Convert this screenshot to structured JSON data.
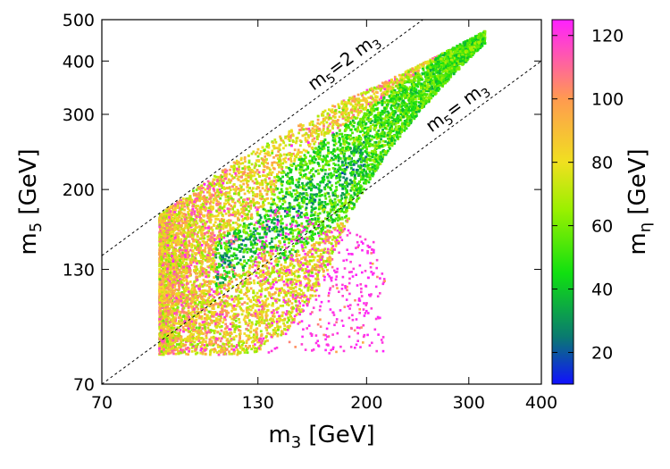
{
  "chart_data": {
    "type": "scatter",
    "xlabel": {
      "main": "m",
      "sub": "3",
      "unit": " [GeV]"
    },
    "ylabel": {
      "main": "m",
      "sub": "5",
      "unit": " [GeV]"
    },
    "colorbar_label": {
      "main": "m",
      "sub": "η",
      "unit": " [GeV]"
    },
    "x_scale": "log",
    "y_scale": "log",
    "xlim": [
      70,
      400
    ],
    "ylim": [
      70,
      500
    ],
    "x_ticks": [
      70,
      130,
      200,
      300,
      400
    ],
    "y_ticks": [
      70,
      130,
      200,
      300,
      400,
      500
    ],
    "colorbar_range": [
      10,
      125
    ],
    "colorbar_ticks": [
      20,
      40,
      60,
      80,
      100,
      120
    ],
    "colormap_stops": [
      {
        "value": 10,
        "color": "#1010ff"
      },
      {
        "value": 25,
        "color": "#0a7a70"
      },
      {
        "value": 45,
        "color": "#10e010"
      },
      {
        "value": 65,
        "color": "#9af000"
      },
      {
        "value": 80,
        "color": "#f0e020"
      },
      {
        "value": 100,
        "color": "#ff9a50"
      },
      {
        "value": 125,
        "color": "#ff20ff"
      }
    ],
    "reference_lines": [
      {
        "name": "m5=2m3",
        "factor": 2,
        "label_main": "m",
        "label_sub": "5",
        "label_rest": "=2 m",
        "label_sub2": "3"
      },
      {
        "name": "m5=m3",
        "factor": 1,
        "label_main": "m",
        "label_sub": "5",
        "label_rest": "= m",
        "label_sub2": "3"
      }
    ],
    "point_clusters": [
      {
        "name": "main-band",
        "x_range": [
          88,
          320
        ],
        "color_range": [
          15,
          125
        ],
        "points": 9000
      },
      {
        "name": "heavy-eta-cloud",
        "x_range": [
          128,
          215
        ],
        "y_range": [
          82,
          185
        ],
        "color_value": 118,
        "points": 420
      }
    ]
  }
}
